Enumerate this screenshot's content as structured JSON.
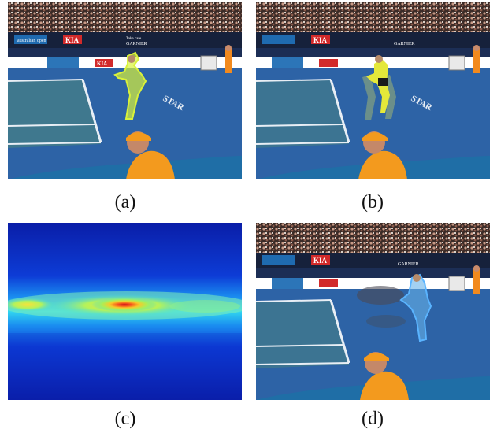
{
  "figure": {
    "captions": [
      "(a)",
      "(b)",
      "(c)",
      "(d)"
    ],
    "banners": {
      "left_sign": "australian open",
      "kia": "KIA",
      "garnier": "GARNIER",
      "small_text": "Take care",
      "court_text": "STAR"
    },
    "colors": {
      "court": "#2d63a6",
      "court_dark": "#234f88",
      "line": "#e8eef5",
      "stands": "#3a2a26",
      "ad_board": "#17213a",
      "highlight_a": "#d9f23a",
      "highlight_d": "#5ab4ff",
      "umpire_shirt": "#f39a1e",
      "wall": "#1f6ea6"
    }
  }
}
